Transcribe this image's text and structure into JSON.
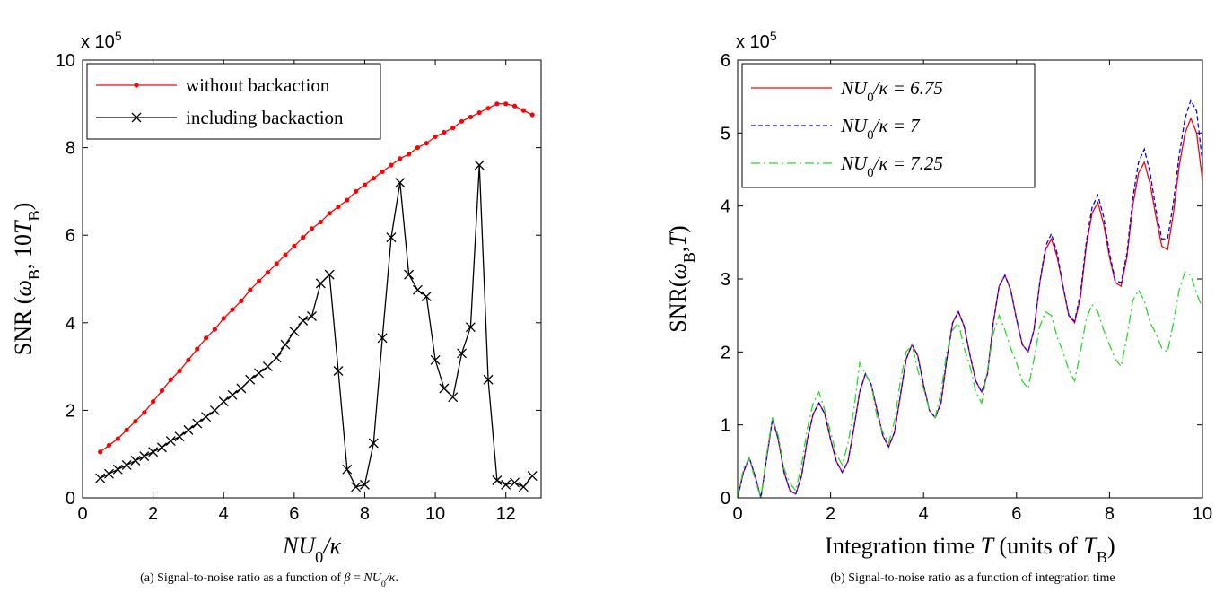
{
  "chart_data": [
    {
      "type": "line",
      "xlabel": [
        {
          "text": "NU",
          "style": "italic"
        },
        {
          "text": "0",
          "style": "sub"
        },
        {
          "text": "/κ",
          "style": "italic"
        }
      ],
      "ylabel": [
        {
          "text": "SNR (",
          "style": "normal"
        },
        {
          "text": "ω",
          "style": "italic"
        },
        {
          "text": "B",
          "style": "sub"
        },
        {
          "text": ", 10",
          "style": "normal"
        },
        {
          "text": "T",
          "style": "italic"
        },
        {
          "text": "B",
          "style": "sub"
        },
        {
          "text": ")",
          "style": "normal"
        }
      ],
      "y_multiplier": {
        "base": "x 10",
        "exponent": "5"
      },
      "caption": [
        {
          "text": "(a) Signal-to-noise ratio as a function of ",
          "style": "normal"
        },
        {
          "text": "β",
          "style": "italic"
        },
        {
          "text": " = ",
          "style": "normal"
        },
        {
          "text": "NU",
          "style": "italic"
        },
        {
          "text": "0",
          "style": "sub"
        },
        {
          "text": "/κ",
          "style": "italic"
        },
        {
          "text": ".",
          "style": "normal"
        }
      ],
      "xlim": [
        0,
        13
      ],
      "xticks": [
        0,
        2,
        4,
        6,
        8,
        10,
        12
      ],
      "ylim": [
        0,
        10
      ],
      "yticks": [
        0,
        2,
        4,
        6,
        8,
        10
      ],
      "legend": "upper left",
      "x": [
        0.5,
        0.75,
        1,
        1.25,
        1.5,
        1.75,
        2,
        2.25,
        2.5,
        2.75,
        3,
        3.25,
        3.5,
        3.75,
        4,
        4.25,
        4.5,
        4.75,
        5,
        5.25,
        5.5,
        5.75,
        6,
        6.25,
        6.5,
        6.75,
        7,
        7.25,
        7.5,
        7.75,
        8,
        8.25,
        8.5,
        8.75,
        9,
        9.25,
        9.5,
        9.75,
        10,
        10.25,
        10.5,
        10.75,
        11,
        11.25,
        11.5,
        11.75,
        12,
        12.25,
        12.5,
        12.75
      ],
      "series": [
        {
          "name": [
            {
              "text": "without backaction",
              "style": "normal"
            }
          ],
          "color": "#ff0000",
          "marker": "dot",
          "dash": "solid",
          "values": [
            1.05,
            1.2,
            1.35,
            1.55,
            1.75,
            1.95,
            2.2,
            2.45,
            2.7,
            2.9,
            3.15,
            3.4,
            3.65,
            3.85,
            4.1,
            4.3,
            4.5,
            4.75,
            4.95,
            5.15,
            5.35,
            5.55,
            5.75,
            5.95,
            6.15,
            6.3,
            6.5,
            6.65,
            6.8,
            7.0,
            7.15,
            7.3,
            7.45,
            7.6,
            7.75,
            7.85,
            8.0,
            8.1,
            8.25,
            8.35,
            8.45,
            8.6,
            8.7,
            8.8,
            8.9,
            9.0,
            9.0,
            8.95,
            8.85,
            8.75
          ]
        },
        {
          "name": [
            {
              "text": "including backaction",
              "style": "normal"
            }
          ],
          "color": "#000000",
          "marker": "x",
          "dash": "solid",
          "values": [
            0.45,
            0.55,
            0.65,
            0.75,
            0.85,
            0.95,
            1.05,
            1.15,
            1.3,
            1.4,
            1.55,
            1.7,
            1.85,
            2.0,
            2.2,
            2.35,
            2.5,
            2.7,
            2.85,
            3.0,
            3.2,
            3.5,
            3.8,
            4.05,
            4.15,
            4.9,
            5.1,
            2.9,
            0.65,
            0.25,
            0.3,
            1.25,
            3.65,
            5.95,
            7.2,
            5.1,
            4.75,
            4.6,
            3.15,
            2.5,
            2.3,
            3.3,
            3.9,
            7.6,
            2.7,
            0.4,
            0.3,
            0.35,
            0.25,
            0.5
          ]
        }
      ]
    },
    {
      "type": "line",
      "xlabel": [
        {
          "text": "Integration time ",
          "style": "normal"
        },
        {
          "text": "T",
          "style": "italic"
        },
        {
          "text": " (units of ",
          "style": "normal"
        },
        {
          "text": "T",
          "style": "italic"
        },
        {
          "text": "B",
          "style": "sub"
        },
        {
          "text": ")",
          "style": "normal"
        }
      ],
      "ylabel": [
        {
          "text": "SNR(",
          "style": "normal"
        },
        {
          "text": "ω",
          "style": "italic"
        },
        {
          "text": "B",
          "style": "sub"
        },
        {
          "text": ",",
          "style": "normal"
        },
        {
          "text": "T",
          "style": "italic"
        },
        {
          "text": ")",
          "style": "normal"
        }
      ],
      "y_multiplier": {
        "base": "x 10",
        "exponent": "5"
      },
      "caption": [
        {
          "text": "(b) Signal-to-noise ratio as a function of integration time",
          "style": "normal"
        }
      ],
      "xlim": [
        0,
        10
      ],
      "xticks": [
        0,
        2,
        4,
        6,
        8,
        10
      ],
      "ylim": [
        0,
        6
      ],
      "yticks": [
        0,
        1,
        2,
        3,
        4,
        5,
        6
      ],
      "legend": "upper left",
      "x": [
        0,
        0.125,
        0.25,
        0.375,
        0.5,
        0.625,
        0.75,
        0.875,
        1,
        1.125,
        1.25,
        1.375,
        1.5,
        1.625,
        1.75,
        1.875,
        2,
        2.125,
        2.25,
        2.375,
        2.5,
        2.625,
        2.75,
        2.875,
        3,
        3.125,
        3.25,
        3.375,
        3.5,
        3.625,
        3.75,
        3.875,
        4,
        4.125,
        4.25,
        4.375,
        4.5,
        4.625,
        4.75,
        4.875,
        5,
        5.125,
        5.25,
        5.375,
        5.5,
        5.625,
        5.75,
        5.875,
        6,
        6.125,
        6.25,
        6.375,
        6.5,
        6.625,
        6.75,
        6.875,
        7,
        7.125,
        7.25,
        7.375,
        7.5,
        7.625,
        7.75,
        7.875,
        8,
        8.125,
        8.25,
        8.375,
        8.5,
        8.625,
        8.75,
        8.875,
        9,
        9.125,
        9.25,
        9.375,
        9.5,
        9.625,
        9.75,
        9.875,
        10
      ],
      "series": [
        {
          "name": [
            {
              "text": "NU",
              "style": "italic"
            },
            {
              "text": "0",
              "style": "sub"
            },
            {
              "text": "/κ = 6.75",
              "style": "italic"
            }
          ],
          "color": "#ff0000",
          "marker": null,
          "dash": "solid",
          "values": [
            0,
            0.35,
            0.55,
            0.3,
            0.0,
            0.55,
            1.08,
            0.8,
            0.35,
            0.1,
            0.05,
            0.3,
            0.8,
            1.15,
            1.3,
            1.15,
            0.8,
            0.5,
            0.35,
            0.5,
            0.95,
            1.45,
            1.7,
            1.55,
            1.2,
            0.85,
            0.7,
            0.9,
            1.4,
            1.9,
            2.1,
            1.95,
            1.55,
            1.2,
            1.1,
            1.3,
            1.9,
            2.4,
            2.55,
            2.35,
            1.95,
            1.6,
            1.45,
            1.7,
            2.4,
            2.9,
            3.05,
            2.85,
            2.45,
            2.1,
            2.0,
            2.3,
            2.95,
            3.4,
            3.55,
            3.3,
            2.9,
            2.5,
            2.4,
            2.75,
            3.45,
            3.9,
            4.05,
            3.75,
            3.3,
            2.95,
            2.9,
            3.3,
            4.0,
            4.45,
            4.6,
            4.3,
            3.85,
            3.45,
            3.4,
            3.9,
            4.55,
            5.0,
            5.2,
            5.0,
            4.35
          ]
        },
        {
          "name": [
            {
              "text": "NU",
              "style": "italic"
            },
            {
              "text": "0",
              "style": "sub"
            },
            {
              "text": "/κ = 7",
              "style": "italic"
            }
          ],
          "color": "#0000ff",
          "marker": null,
          "dash": "dashed",
          "values": [
            0,
            0.35,
            0.55,
            0.3,
            0.0,
            0.55,
            1.08,
            0.8,
            0.35,
            0.1,
            0.05,
            0.3,
            0.8,
            1.15,
            1.3,
            1.15,
            0.8,
            0.5,
            0.35,
            0.5,
            0.95,
            1.45,
            1.7,
            1.55,
            1.2,
            0.85,
            0.7,
            0.9,
            1.4,
            1.9,
            2.1,
            1.95,
            1.55,
            1.2,
            1.1,
            1.3,
            1.9,
            2.4,
            2.55,
            2.35,
            1.95,
            1.6,
            1.45,
            1.7,
            2.4,
            2.9,
            3.05,
            2.85,
            2.45,
            2.1,
            2.0,
            2.3,
            2.95,
            3.45,
            3.62,
            3.35,
            2.9,
            2.5,
            2.42,
            2.8,
            3.5,
            3.98,
            4.15,
            3.85,
            3.35,
            2.98,
            2.95,
            3.35,
            4.1,
            4.6,
            4.78,
            4.45,
            3.95,
            3.55,
            3.55,
            4.05,
            4.7,
            5.2,
            5.45,
            5.3,
            4.6
          ]
        },
        {
          "name": [
            {
              "text": "NU",
              "style": "italic"
            },
            {
              "text": "0",
              "style": "sub"
            },
            {
              "text": "/κ = 7.25",
              "style": "italic"
            }
          ],
          "color": "#22dd22",
          "marker": null,
          "dash": "dashdot",
          "values": [
            0,
            0.4,
            0.55,
            0.25,
            0.0,
            0.6,
            1.1,
            0.85,
            0.4,
            0.2,
            0.1,
            0.45,
            0.95,
            1.3,
            1.45,
            1.2,
            0.9,
            0.6,
            0.45,
            0.75,
            1.2,
            1.85,
            1.7,
            1.55,
            1.1,
            0.9,
            0.75,
            1.05,
            1.6,
            2.0,
            2.1,
            1.75,
            1.5,
            1.2,
            1.1,
            1.45,
            2.0,
            2.3,
            2.4,
            2.05,
            1.8,
            1.45,
            1.3,
            1.75,
            2.25,
            2.5,
            2.3,
            2.05,
            1.85,
            1.6,
            1.5,
            1.9,
            2.35,
            2.55,
            2.5,
            2.2,
            2.0,
            1.75,
            1.6,
            2.0,
            2.45,
            2.65,
            2.55,
            2.3,
            2.1,
            1.9,
            1.8,
            2.2,
            2.7,
            2.85,
            2.7,
            2.4,
            2.25,
            2.05,
            2.0,
            2.4,
            2.85,
            3.1,
            3.05,
            2.8,
            2.6
          ]
        }
      ]
    }
  ]
}
